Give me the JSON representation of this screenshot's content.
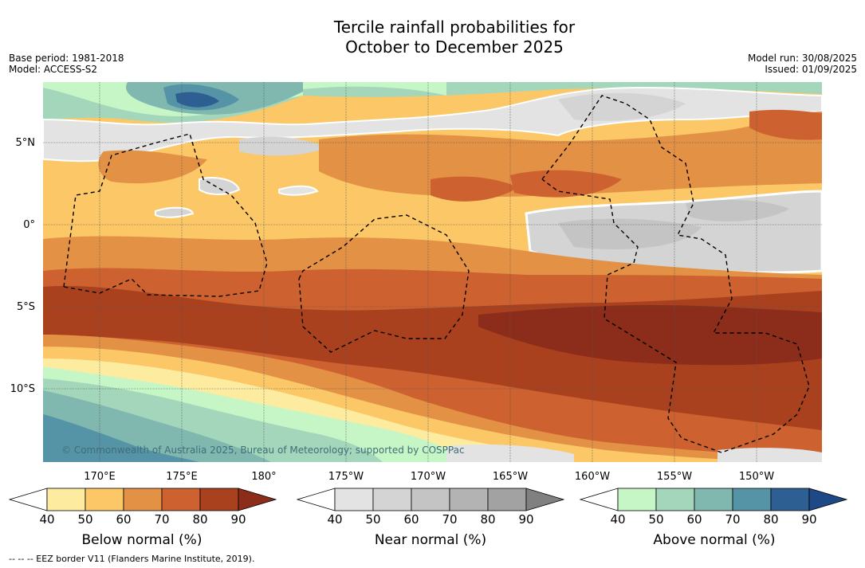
{
  "title": {
    "line1": "Tercile rainfall probabilities for",
    "line2": "October to December 2025"
  },
  "meta_left": {
    "base_period": "Base period: 1981-2018",
    "model": "Model: ACCESS-S2"
  },
  "meta_right": {
    "model_run": "Model run: 30/08/2025",
    "issued": "Issued: 01/09/2025"
  },
  "copyright": "© Commonwealth of Australia 2025, Bureau of Meteorology; supported by COSPPac",
  "axes": {
    "lon_labels": [
      "170°E",
      "175°E",
      "180°",
      "175°W",
      "170°W",
      "165°W",
      "160°W",
      "155°W",
      "150°W"
    ],
    "lat_labels": [
      "5°N",
      "0°",
      "5°S",
      "10°S"
    ]
  },
  "colorbars": [
    {
      "title": "Below normal (%)",
      "ticks": [
        "40",
        "50",
        "60",
        "70",
        "80",
        "90"
      ],
      "colors": [
        "#ffffff",
        "#fdeba0",
        "#fcc766",
        "#e39145",
        "#cd6230",
        "#a9411f",
        "#8c2c1a"
      ]
    },
    {
      "title": "Near normal (%)",
      "ticks": [
        "40",
        "50",
        "60",
        "70",
        "80",
        "90"
      ],
      "colors": [
        "#ffffff",
        "#e3e3e3",
        "#d4d4d4",
        "#c4c4c4",
        "#b3b3b3",
        "#a2a2a2",
        "#808080"
      ]
    },
    {
      "title": "Above normal (%)",
      "ticks": [
        "40",
        "50",
        "60",
        "70",
        "80",
        "90"
      ],
      "colors": [
        "#ffffff",
        "#c6f6c6",
        "#a3d6bb",
        "#80b7af",
        "#5593a6",
        "#2d5f93",
        "#1d4a86"
      ]
    }
  ],
  "footer": "--  --  -- EEZ border V11 (Flanders Marine Institute, 2019)."
}
